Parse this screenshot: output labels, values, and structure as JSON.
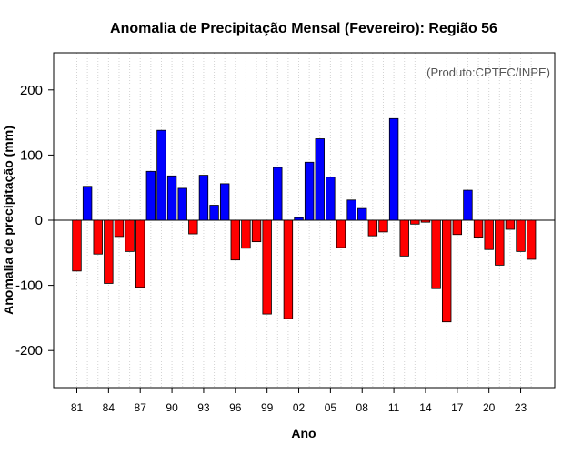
{
  "chart_data": {
    "type": "bar",
    "title": "Anomalia de Precipitação Mensal (Fevereiro): Região 56",
    "xlabel": "Ano",
    "ylabel": "Anomalia de precipitação (mm)",
    "credit": "(Produto:CPTEC/INPE)",
    "ylim": [
      -260,
      260
    ],
    "yticks": [
      -200,
      -100,
      0,
      100,
      200
    ],
    "xtick_labels": [
      "81",
      "84",
      "87",
      "90",
      "93",
      "96",
      "99",
      "02",
      "05",
      "08",
      "11",
      "14",
      "17",
      "20",
      "23"
    ],
    "categories": [
      "1981",
      "1982",
      "1983",
      "1984",
      "1985",
      "1986",
      "1987",
      "1988",
      "1989",
      "1990",
      "1991",
      "1992",
      "1993",
      "1994",
      "1995",
      "1996",
      "1997",
      "1998",
      "1999",
      "2000",
      "2001",
      "2002",
      "2003",
      "2004",
      "2005",
      "2006",
      "2007",
      "2008",
      "2009",
      "2010",
      "2011",
      "2012",
      "2013",
      "2014",
      "2015",
      "2016",
      "2017",
      "2018",
      "2019",
      "2020",
      "2021",
      "2022",
      "2023",
      "2024"
    ],
    "values": [
      -78,
      52,
      -52,
      -97,
      -25,
      -48,
      -103,
      75,
      138,
      68,
      49,
      -21,
      69,
      23,
      56,
      -61,
      -43,
      -33,
      -144,
      81,
      -151,
      4,
      89,
      125,
      66,
      -42,
      31,
      18,
      -24,
      -18,
      156,
      -55,
      -6,
      -3,
      -105,
      -156,
      -22,
      46,
      -26,
      -45,
      -69,
      -14,
      -48,
      -60
    ],
    "colors": {
      "positive": "#0000ff",
      "negative": "#ff0000",
      "bar_edge": "#000000",
      "grid": "#d3d3d3",
      "zero_line": "#000000",
      "frame": "#000000"
    }
  }
}
